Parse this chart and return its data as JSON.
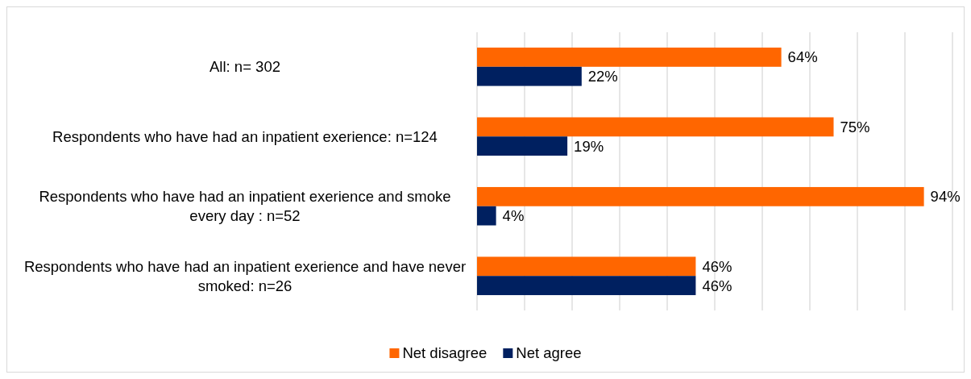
{
  "chart_data": {
    "type": "bar",
    "orientation": "horizontal",
    "categories": [
      "All: n= 302",
      "Respondents who have had an inpatient exerience: n=124",
      "Respondents who have had an inpatient exerience and smoke every day : n=52",
      "Respondents who have had an inpatient exerience and have never smoked: n=26"
    ],
    "series": [
      {
        "name": "Net disagree",
        "color": "#ff6600",
        "values": [
          64,
          75,
          94,
          46
        ],
        "value_labels": [
          "64%",
          "75%",
          "94%",
          "46%"
        ]
      },
      {
        "name": "Net agree",
        "color": "#002060",
        "values": [
          22,
          19,
          4,
          46
        ],
        "value_labels": [
          "22%",
          "19%",
          "4%",
          "46%"
        ]
      }
    ],
    "xlim": [
      0,
      100
    ],
    "xticks": [
      {
        "value": 0,
        "label": null
      },
      {
        "value": 10,
        "label": null
      },
      {
        "value": 20,
        "label": null
      },
      {
        "value": 30,
        "label": null
      },
      {
        "value": 40,
        "label": null
      },
      {
        "value": 50,
        "label": null
      },
      {
        "value": 60,
        "label": null
      },
      {
        "value": 70,
        "label": null
      },
      {
        "value": 80,
        "label": null
      },
      {
        "value": 90,
        "label": null
      },
      {
        "value": 100,
        "label": null
      }
    ],
    "tick_labels": "y",
    "grid": "x",
    "legend": "bottom"
  }
}
